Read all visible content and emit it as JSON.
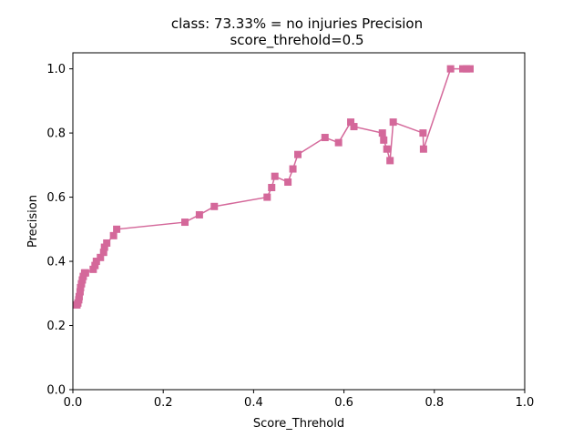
{
  "chart_data": {
    "type": "line",
    "title_line1": "class: 73.33% = no injuries Precision",
    "title_line2": "score_threhold=0.5",
    "xlabel": "Score_Threhold",
    "ylabel": "Precision",
    "xlim": [
      0,
      1
    ],
    "ylim": [
      0,
      1.05
    ],
    "xticks": [
      "0.0",
      "0.2",
      "0.4",
      "0.6",
      "0.8",
      "1.0"
    ],
    "yticks": [
      "0.0",
      "0.2",
      "0.4",
      "0.6",
      "0.8",
      "1.0"
    ],
    "grid": false,
    "color": "#d4689a",
    "marker": "square",
    "series": [
      {
        "x": [
          0.009,
          0.011,
          0.013,
          0.014,
          0.016,
          0.017,
          0.019,
          0.021,
          0.023,
          0.026,
          0.028,
          0.045,
          0.049,
          0.052,
          0.061,
          0.068,
          0.07,
          0.075,
          0.09,
          0.097,
          0.248,
          0.28,
          0.313,
          0.43,
          0.44,
          0.447,
          0.476,
          0.487,
          0.498,
          0.558,
          0.588,
          0.615,
          0.622,
          0.685,
          0.688,
          0.695,
          0.702,
          0.709,
          0.775,
          0.776,
          0.836,
          0.863,
          0.871,
          0.879
        ],
        "y": [
          0.264,
          0.27,
          0.28,
          0.29,
          0.305,
          0.318,
          0.33,
          0.342,
          0.353,
          0.364,
          0.364,
          0.375,
          0.387,
          0.4,
          0.412,
          0.428,
          0.444,
          0.457,
          0.48,
          0.5,
          0.522,
          0.545,
          0.571,
          0.6,
          0.63,
          0.665,
          0.647,
          0.688,
          0.733,
          0.786,
          0.77,
          0.834,
          0.82,
          0.8,
          0.778,
          0.75,
          0.714,
          0.834,
          0.8,
          0.75,
          1.0,
          1.0,
          1.0,
          1.0
        ]
      }
    ]
  }
}
